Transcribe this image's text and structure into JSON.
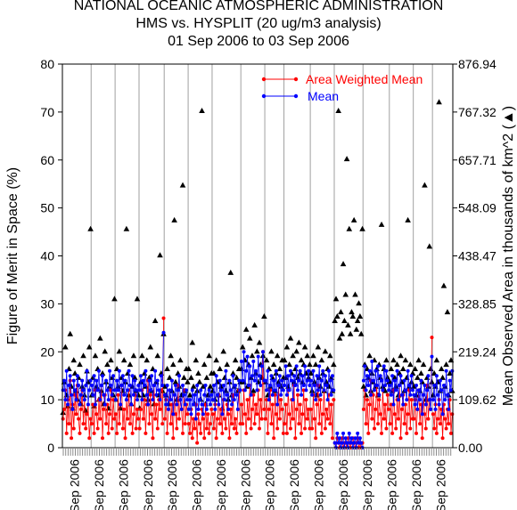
{
  "chart_data": {
    "type": "scatter",
    "title": [
      "NATIONAL OCEANIC ATMOSPHERIC ADMINISTRATION",
      "HMS vs. HYSPLIT (20 ug/m3 analysis)",
      "01 Sep 2006 to 03 Sep 2006"
    ],
    "ylabel": "Figure of Merit in Space (%)",
    "y2label": "Mean Observed Area in thousands of km^2 (▲)",
    "ylim": [
      0,
      80
    ],
    "y2lim": [
      0,
      876.94
    ],
    "yticks": [
      "0",
      "10",
      "20",
      "30",
      "40",
      "50",
      "60",
      "70",
      "80"
    ],
    "y2ticks": [
      "0.00",
      "109.62",
      "219.24",
      "328.85",
      "438.47",
      "548.09",
      "657.71",
      "767.32",
      "876.94"
    ],
    "xticks": [
      "Sep 2006",
      "Sep 2006",
      "Sep 2006",
      "Sep 2006",
      "Sep 2006",
      "Sep 2006",
      "Sep 2006",
      "Sep 2006",
      "Sep 2006",
      "Sep 2006",
      "Sep 2006",
      "Sep 2006",
      "Sep 2006",
      "Sep 2006",
      "Sep 2006",
      "Sep 2006"
    ],
    "legend_position": "top-right",
    "grid": false,
    "colors": {
      "area_weighted_mean": "#ff0000",
      "mean": "#0000ff",
      "observed_area": "#000000",
      "separator": "#a0a0a0"
    },
    "series": [
      {
        "name": "Area Weighted Mean",
        "color": "#ff0000",
        "marker": "circle"
      },
      {
        "name": "Mean",
        "color": "#0000ff",
        "marker": "circle"
      },
      {
        "name": "",
        "axis": "right",
        "color": "#000000",
        "marker": "triangle"
      }
    ],
    "segments": [
      {
        "awm": [
          6,
          8,
          12,
          3,
          10,
          5,
          14,
          2,
          9,
          4,
          11,
          7,
          13,
          6,
          3,
          8,
          12,
          5,
          10,
          4,
          7,
          9,
          2,
          6
        ],
        "mean": [
          12,
          14,
          10,
          16,
          9,
          13,
          15,
          11,
          8,
          14,
          12,
          10,
          15,
          13,
          9,
          11,
          14,
          12,
          10,
          13,
          16,
          9,
          12,
          14
        ],
        "area": [
          80,
          150,
          230,
          120,
          95,
          180,
          260,
          140,
          90,
          200,
          170,
          130,
          110,
          160,
          190,
          100,
          140,
          210,
          120,
          85,
          175,
          150,
          230,
          500
        ]
      },
      {
        "awm": [
          5,
          9,
          3,
          12,
          7,
          4,
          10,
          6,
          13,
          2,
          8,
          11,
          5,
          9,
          3,
          7,
          12,
          4,
          10,
          6
        ],
        "mean": [
          13,
          11,
          15,
          9,
          14,
          12,
          16,
          10,
          13,
          15,
          11,
          9,
          14,
          12,
          10,
          16,
          13,
          11,
          15,
          12
        ],
        "area": [
          120,
          160,
          95,
          210,
          140,
          180,
          110,
          250,
          130,
          170,
          100,
          220,
          150,
          190,
          90,
          140,
          200,
          160,
          120,
          340
        ]
      },
      {
        "awm": [
          7,
          3,
          11,
          5,
          9,
          13,
          4,
          8,
          2,
          10,
          6,
          12,
          5,
          9,
          3,
          7,
          11,
          4,
          8,
          6
        ],
        "mean": [
          10,
          14,
          12,
          16,
          9,
          13,
          15,
          11,
          14,
          10,
          12,
          16,
          13,
          9,
          15,
          11,
          14,
          12,
          10,
          13
        ],
        "area": [
          110,
          180,
          140,
          220,
          90,
          160,
          130,
          200,
          150,
          500,
          170,
          120,
          190,
          100,
          140,
          210,
          160,
          130,
          340,
          120
        ]
      },
      {
        "awm": [
          4,
          8,
          12,
          6,
          10,
          3,
          9,
          14,
          5,
          11,
          7,
          2,
          13,
          6,
          9,
          4,
          10,
          8,
          12,
          5,
          27
        ],
        "mean": [
          12,
          15,
          10,
          14,
          13,
          16,
          11,
          9,
          14,
          12,
          15,
          10,
          13,
          16,
          11,
          14,
          12,
          10,
          15,
          13,
          24
        ],
        "area": [
          90,
          150,
          210,
          120,
          170,
          140,
          200,
          110,
          160,
          230,
          130,
          180,
          100,
          290,
          150,
          210,
          120,
          440,
          170,
          130,
          260
        ]
      },
      {
        "awm": [
          6,
          10,
          3,
          8,
          12,
          5,
          9,
          2,
          11,
          7,
          4,
          13,
          6,
          10,
          8,
          3,
          12,
          5,
          9,
          7
        ],
        "mean": [
          11,
          9,
          13,
          8,
          12,
          10,
          14,
          7,
          11,
          13,
          9,
          12,
          15,
          10,
          8,
          13,
          11,
          9,
          12,
          10
        ],
        "area": [
          140,
          120,
          180,
          100,
          160,
          210,
          130,
          190,
          520,
          150,
          110,
          170,
          140,
          200,
          120,
          600,
          160,
          130,
          180,
          150
        ]
      },
      {
        "awm": [
          5,
          3,
          8,
          2,
          6,
          4,
          9,
          1,
          7,
          5,
          3,
          8,
          6,
          2,
          9,
          4,
          7,
          3,
          5,
          8
        ],
        "mean": [
          8,
          10,
          7,
          12,
          9,
          11,
          6,
          13,
          8,
          10,
          12,
          9,
          7,
          11,
          13,
          8,
          10,
          12,
          9,
          11
        ],
        "area": [
          180,
          120,
          160,
          240,
          140,
          100,
          200,
          130,
          170,
          150,
          110,
          770,
          140,
          190,
          100,
          160,
          120,
          210,
          140,
          170
        ]
      },
      {
        "awm": [
          7,
          4,
          9,
          2,
          6,
          11,
          5,
          8,
          3,
          10,
          6,
          4,
          9,
          7,
          2,
          8,
          5,
          11,
          4,
          6,
          3,
          8,
          12,
          5
        ],
        "mean": [
          10,
          13,
          8,
          15,
          11,
          9,
          14,
          12,
          7,
          13,
          10,
          16,
          11,
          8,
          14,
          12,
          9,
          15,
          10,
          13,
          11,
          8,
          14,
          12
        ],
        "area": [
          130,
          170,
          110,
          200,
          150,
          120,
          180,
          140,
          90,
          220,
          160,
          130,
          190,
          110,
          150,
          400,
          120,
          170,
          140,
          200,
          160,
          130,
          180,
          150
        ]
      },
      {
        "awm": [
          9,
          5,
          12,
          7,
          3,
          10,
          6,
          13,
          4,
          8,
          11,
          5,
          9,
          7,
          12,
          4,
          10,
          6,
          20,
          8
        ],
        "mean": [
          18,
          14,
          20,
          12,
          16,
          19,
          13,
          17,
          11,
          15,
          18,
          14,
          16,
          12,
          19,
          15,
          13,
          17,
          20,
          14
        ],
        "area": [
          180,
          230,
          150,
          200,
          270,
          140,
          190,
          250,
          160,
          210,
          130,
          280,
          170,
          220,
          150,
          240,
          190,
          160,
          210,
          300
        ]
      },
      {
        "awm": [
          6,
          10,
          3,
          8,
          12,
          5,
          9,
          2,
          11,
          7,
          4,
          13,
          6,
          10,
          8,
          3
        ],
        "mean": [
          14,
          12,
          16,
          10,
          13,
          15,
          11,
          14,
          12,
          16,
          9,
          13,
          15,
          11,
          14,
          12
        ],
        "area": [
          150,
          200,
          120,
          180,
          140,
          220,
          160,
          190,
          130,
          170,
          210,
          150,
          180,
          140,
          200,
          160
        ]
      },
      {
        "awm": [
          5,
          9,
          3,
          12,
          7,
          4,
          10,
          6,
          13,
          2,
          8,
          11,
          5,
          9,
          3,
          7,
          12,
          4,
          10,
          6,
          8,
          4
        ],
        "mean": [
          13,
          17,
          11,
          15,
          12,
          16,
          14,
          10,
          15,
          13,
          17,
          12,
          14,
          16,
          11,
          15,
          13,
          17,
          12,
          14,
          16,
          13
        ],
        "area": [
          200,
          160,
          230,
          140,
          190,
          250,
          170,
          210,
          150,
          180,
          220,
          160,
          240,
          170,
          200,
          150,
          190,
          230,
          170,
          210,
          160,
          190
        ]
      },
      {
        "awm": [
          8,
          4,
          11,
          6,
          2,
          9,
          13,
          5,
          10,
          3,
          7,
          12,
          4,
          8,
          6,
          11,
          5,
          9,
          2,
          10
        ],
        "mean": [
          14,
          11,
          16,
          13,
          10,
          15,
          12,
          17,
          11,
          14,
          16,
          12,
          15,
          13,
          10,
          16,
          14,
          11,
          15,
          12
        ],
        "area": [
          170,
          130,
          210,
          150,
          190,
          120,
          230,
          160,
          140,
          200,
          170,
          130,
          220,
          150,
          180,
          140,
          210,
          160,
          130,
          190
        ]
      },
      {
        "awm": [
          1,
          0,
          2,
          1,
          0,
          1,
          2,
          0,
          1,
          1,
          0,
          2,
          1,
          0,
          1,
          2,
          1,
          0,
          1,
          2,
          0,
          1,
          0,
          1
        ],
        "mean": [
          1,
          0,
          3,
          1,
          2,
          0,
          1,
          3,
          0,
          2,
          1,
          0,
          3,
          1,
          2,
          0,
          1,
          2,
          0,
          3,
          1,
          2,
          1,
          0
        ],
        "area": [
          290,
          340,
          300,
          770,
          250,
          310,
          260,
          420,
          290,
          350,
          660,
          280,
          500,
          260,
          310,
          300,
          520,
          350,
          270,
          290,
          330,
          300,
          260,
          500
        ]
      },
      {
        "awm": [
          8,
          12,
          5,
          10,
          3,
          9,
          14,
          6,
          11,
          4,
          8,
          13,
          5,
          10,
          7,
          3,
          12,
          6,
          9,
          4,
          11,
          8
        ],
        "mean": [
          14,
          17,
          12,
          15,
          13,
          16,
          11,
          18,
          14,
          12,
          16,
          13,
          17,
          11,
          15,
          14,
          12,
          17,
          13,
          16,
          14,
          12
        ],
        "area": [
          140,
          190,
          120,
          180,
          160,
          210,
          130,
          170,
          150,
          200,
          140,
          180,
          120,
          190,
          160,
          510,
          140,
          180,
          130,
          200,
          160,
          150
        ]
      },
      {
        "awm": [
          5,
          9,
          3,
          12,
          7,
          4,
          10,
          6,
          13,
          2,
          8,
          11,
          5,
          9,
          3,
          7,
          12,
          4,
          10,
          6
        ],
        "mean": [
          13,
          11,
          15,
          9,
          14,
          12,
          16,
          10,
          13,
          15,
          11,
          9,
          14,
          12,
          10,
          16,
          13,
          11,
          15,
          12
        ],
        "area": [
          150,
          180,
          130,
          200,
          160,
          140,
          190,
          120,
          170,
          210,
          150,
          180,
          130,
          200,
          160,
          520,
          140,
          190,
          150,
          170
        ]
      },
      {
        "awm": [
          6,
          10,
          3,
          8,
          12,
          5,
          9,
          2,
          11,
          7,
          4,
          13,
          6,
          10,
          8,
          23
        ],
        "mean": [
          11,
          9,
          13,
          8,
          12,
          10,
          14,
          7,
          11,
          13,
          9,
          12,
          15,
          10,
          8,
          19
        ],
        "area": [
          140,
          180,
          120,
          160,
          200,
          130,
          170,
          150,
          190,
          600,
          110,
          160,
          140,
          460,
          180,
          150
        ]
      },
      {
        "awm": [
          7,
          4,
          9,
          3,
          6,
          10,
          5,
          8,
          2,
          9,
          6,
          4,
          8,
          5,
          10,
          3,
          7
        ],
        "mean": [
          10,
          13,
          8,
          15,
          11,
          9,
          14,
          12,
          7,
          13,
          10,
          16,
          11,
          8,
          14,
          12,
          16
        ],
        "area": [
          120,
          170,
          140,
          200,
          150,
          790,
          130,
          180,
          160,
          370,
          140,
          190,
          310,
          120,
          170,
          200,
          130
        ]
      }
    ]
  }
}
